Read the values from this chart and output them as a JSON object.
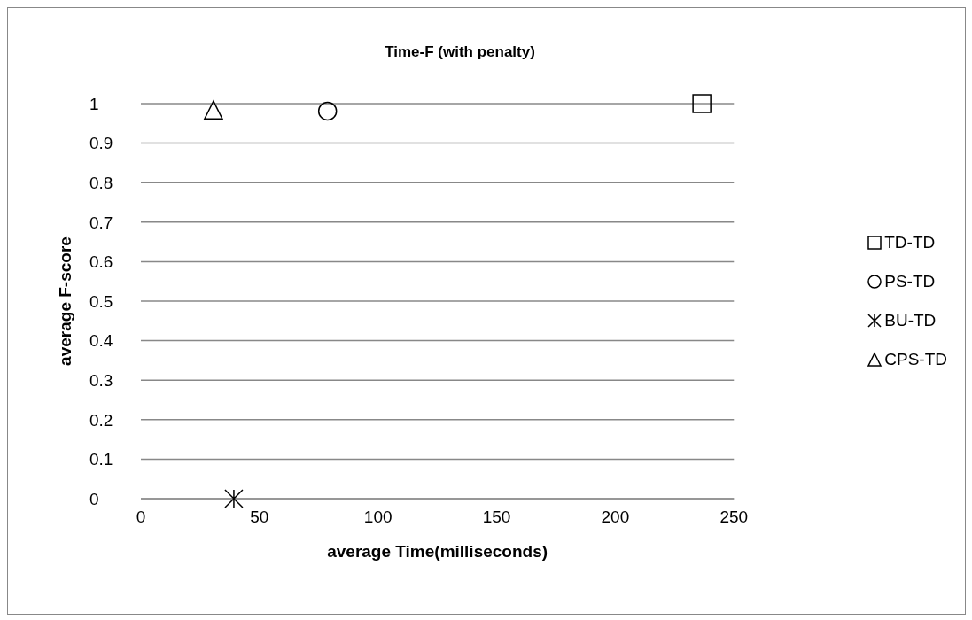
{
  "chart_data": {
    "type": "scatter",
    "title": "Time-F (with penalty)",
    "xlabel": "average Time(milliseconds)",
    "ylabel": "average F-score",
    "xlim": [
      0,
      250
    ],
    "xticks": [
      0,
      50,
      100,
      150,
      200,
      250
    ],
    "ylim": [
      0,
      1
    ],
    "yticks": [
      0,
      0.1,
      0.2,
      0.3,
      0.4,
      0.5,
      0.6,
      0.7,
      0.8,
      0.9,
      1
    ],
    "grid": "y",
    "legend": "right",
    "series": [
      {
        "name": "TD-TD",
        "color": "#000000",
        "marker": "square",
        "x": [
          236.5
        ],
        "values": [
          1
        ]
      },
      {
        "name": "PS-TD",
        "color": "#000000",
        "marker": "circle",
        "x": [
          78.7
        ],
        "values": [
          0.981
        ]
      },
      {
        "name": "BU-TD",
        "color": "#000000",
        "marker": "cross",
        "x": [
          39.2
        ],
        "values": [
          0
        ]
      },
      {
        "name": "CPS-TD",
        "color": "#000000",
        "marker": "triangle",
        "x": [
          30.6
        ],
        "values": [
          0.984
        ]
      }
    ]
  }
}
